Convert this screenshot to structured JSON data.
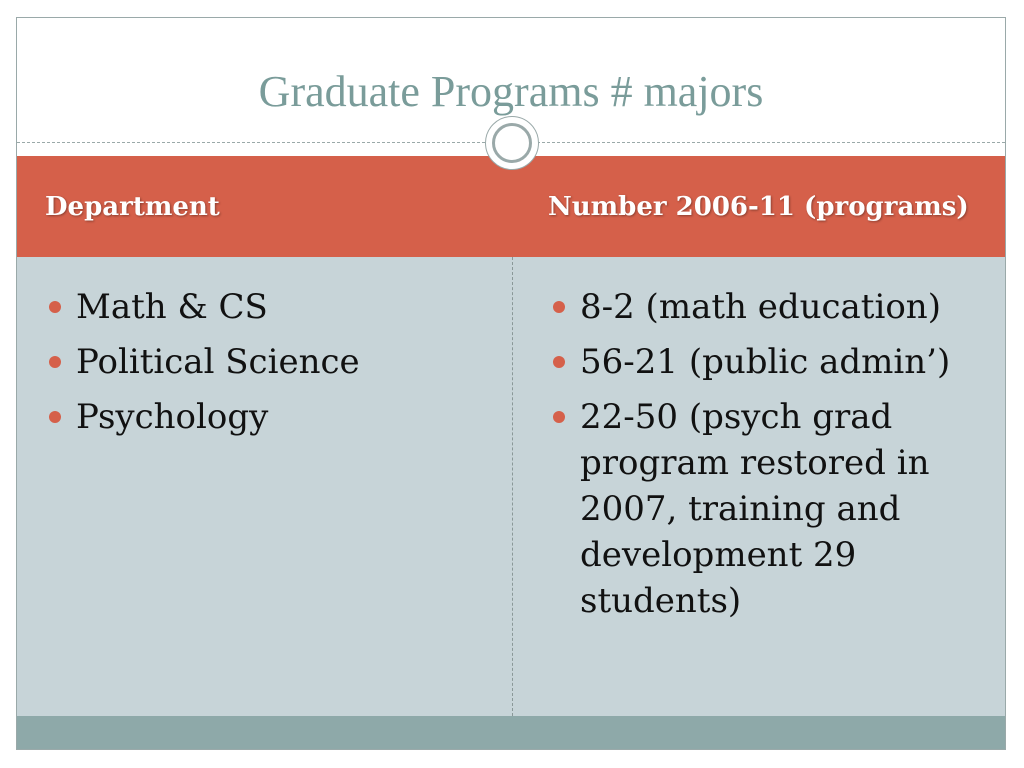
{
  "slide": {
    "title": "Graduate Programs # majors"
  },
  "table": {
    "headers": {
      "department": "Department",
      "number": "Number 2006-11 (programs)"
    },
    "departments": [
      "Math & CS",
      "Political Science",
      "Psychology"
    ],
    "numbers": [
      "8-2 (math education)",
      "56-21 (public admin’)",
      "22-50 (psych grad program restored in 2007, training and development  29 students)"
    ]
  },
  "colors": {
    "title": "#7a9c9a",
    "header_bg": "#d5604a",
    "body_bg": "#c7d4d8",
    "footer_bg": "#8ea9a9",
    "bullet": "#d5604a"
  },
  "icons": {
    "ornament": "circle-ornament-icon",
    "bullet": "bullet-icon"
  }
}
